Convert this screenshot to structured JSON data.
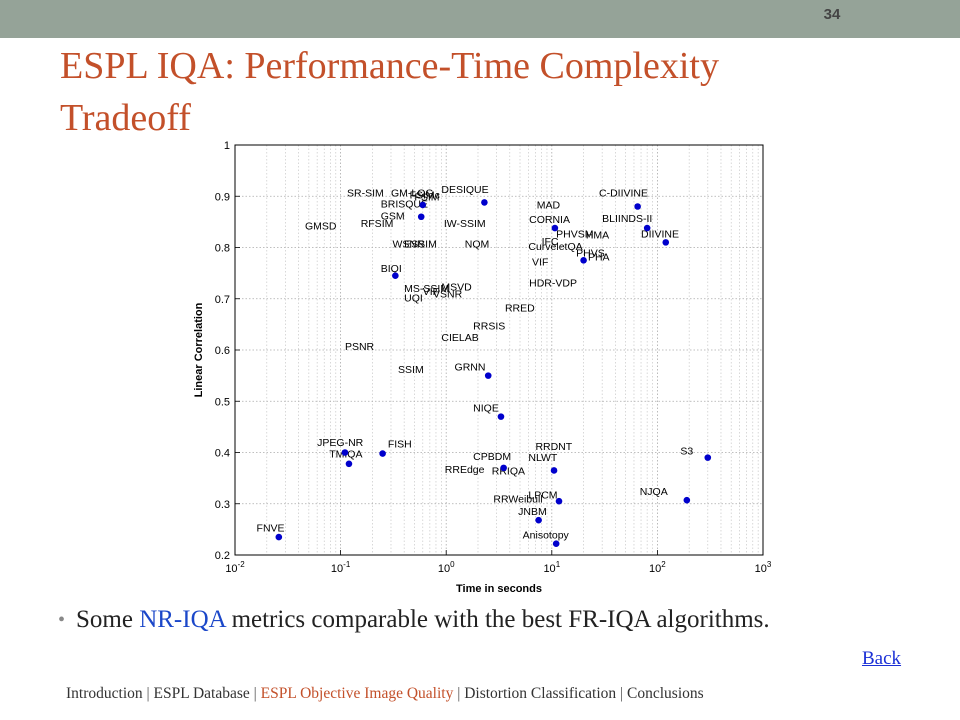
{
  "slide_number": "34",
  "title": "ESPL IQA: Performance-Time Complexity Tradeoff",
  "bullet": {
    "prefix": "Some ",
    "highlight": "NR-IQA",
    "suffix": " metrics comparable with the best FR-IQA algorithms."
  },
  "back_link": "Back",
  "footer": {
    "items": [
      "Introduction",
      "ESPL Database",
      "ESPL Objective Image Quality",
      "Distortion Classification",
      "Conclusions"
    ],
    "separator": "|",
    "current_index": 2
  },
  "colors": {
    "title": "#c3502a",
    "highlight": "#1b47c9",
    "point": "#0000cc",
    "topbar": "#95a398"
  },
  "chart_data": {
    "type": "scatter",
    "title": "",
    "xlabel": "Time in seconds",
    "ylabel": "Linear Correlation",
    "x_scale": "log",
    "xlim": [
      0.01,
      1000
    ],
    "ylim": [
      0.2,
      1
    ],
    "x_ticks": [
      {
        "value": 0.01,
        "base": "10",
        "exp": "-2"
      },
      {
        "value": 0.1,
        "base": "10",
        "exp": "-1"
      },
      {
        "value": 1,
        "base": "10",
        "exp": "0"
      },
      {
        "value": 10,
        "base": "10",
        "exp": "1"
      },
      {
        "value": 100,
        "base": "10",
        "exp": "2"
      },
      {
        "value": 1000,
        "base": "10",
        "exp": "3"
      }
    ],
    "y_ticks": [
      "0.2",
      "0.3",
      "0.4",
      "0.5",
      "0.6",
      "0.7",
      "0.8",
      "0.9",
      "1"
    ],
    "grid": true,
    "points": [
      {
        "x": 0.026,
        "y": 0.235
      },
      {
        "x": 0.11,
        "y": 0.4
      },
      {
        "x": 0.12,
        "y": 0.378
      },
      {
        "x": 0.25,
        "y": 0.398
      },
      {
        "x": 0.33,
        "y": 0.745
      },
      {
        "x": 0.58,
        "y": 0.86
      },
      {
        "x": 0.6,
        "y": 0.883
      },
      {
        "x": 2.3,
        "y": 0.888
      },
      {
        "x": 2.5,
        "y": 0.55
      },
      {
        "x": 3.3,
        "y": 0.47
      },
      {
        "x": 3.5,
        "y": 0.37
      },
      {
        "x": 7.5,
        "y": 0.268
      },
      {
        "x": 10.5,
        "y": 0.365
      },
      {
        "x": 10.7,
        "y": 0.838
      },
      {
        "x": 11,
        "y": 0.222
      },
      {
        "x": 11.7,
        "y": 0.305
      },
      {
        "x": 20,
        "y": 0.775
      },
      {
        "x": 65,
        "y": 0.88
      },
      {
        "x": 80,
        "y": 0.838
      },
      {
        "x": 120,
        "y": 0.81
      },
      {
        "x": 190,
        "y": 0.307
      },
      {
        "x": 300,
        "y": 0.39
      }
    ],
    "labels": [
      {
        "text": "SR-SIM",
        "x": 0.115,
        "y": 0.9
      },
      {
        "text": "GM-LOG",
        "x": 0.3,
        "y": 0.9
      },
      {
        "text": "FSIMc",
        "x": 0.45,
        "y": 0.896
      },
      {
        "text": "FSIM",
        "x": 0.5,
        "y": 0.892
      },
      {
        "text": "DESIQUE",
        "x": 0.9,
        "y": 0.906
      },
      {
        "text": "BRISQUE",
        "x": 0.24,
        "y": 0.878
      },
      {
        "text": "GSM",
        "x": 0.24,
        "y": 0.855
      },
      {
        "text": "RFSIM",
        "x": 0.155,
        "y": 0.84
      },
      {
        "text": "IW-SSIM",
        "x": 0.95,
        "y": 0.84
      },
      {
        "text": "GMSD",
        "x": 0.046,
        "y": 0.835
      },
      {
        "text": "WSNR",
        "x": 0.31,
        "y": 0.8
      },
      {
        "text": "ESSIM",
        "x": 0.4,
        "y": 0.8
      },
      {
        "text": "NQM",
        "x": 1.5,
        "y": 0.8
      },
      {
        "text": "BIQI",
        "x": 0.24,
        "y": 0.752
      },
      {
        "text": "MS-SSIM",
        "x": 0.4,
        "y": 0.713
      },
      {
        "text": "MSVD",
        "x": 0.9,
        "y": 0.716
      },
      {
        "text": "VSNR",
        "x": 0.75,
        "y": 0.702
      },
      {
        "text": "VIF",
        "x": 0.6,
        "y": 0.707
      },
      {
        "text": "UQI",
        "x": 0.4,
        "y": 0.695
      },
      {
        "text": "MAD",
        "x": 7.2,
        "y": 0.876
      },
      {
        "text": "CORNIA",
        "x": 6.1,
        "y": 0.848
      },
      {
        "text": "C-DIIVINE",
        "x": 28,
        "y": 0.9
      },
      {
        "text": "BLIINDS-II",
        "x": 30,
        "y": 0.85
      },
      {
        "text": "PHVSM",
        "x": 11,
        "y": 0.82
      },
      {
        "text": "HMA",
        "x": 21,
        "y": 0.818
      },
      {
        "text": "IFC",
        "x": 8,
        "y": 0.805
      },
      {
        "text": "CurveletQA",
        "x": 6,
        "y": 0.795
      },
      {
        "text": "DIIVINE",
        "x": 70,
        "y": 0.82
      },
      {
        "text": "PHVS",
        "x": 17,
        "y": 0.782
      },
      {
        "text": "PHA",
        "x": 22,
        "y": 0.775
      },
      {
        "text": "VIF",
        "x": 6.5,
        "y": 0.765
      },
      {
        "text": "HDR-VDP",
        "x": 6.1,
        "y": 0.724
      },
      {
        "text": "RRED",
        "x": 3.6,
        "y": 0.675
      },
      {
        "text": "RRSIS",
        "x": 1.8,
        "y": 0.64
      },
      {
        "text": "CIELAB",
        "x": 0.9,
        "y": 0.618
      },
      {
        "text": "PSNR",
        "x": 0.11,
        "y": 0.6
      },
      {
        "text": "GRNN",
        "x": 1.2,
        "y": 0.56
      },
      {
        "text": "SSIM",
        "x": 0.35,
        "y": 0.555
      },
      {
        "text": "NIQE",
        "x": 1.8,
        "y": 0.48
      },
      {
        "text": "JPEG-NR",
        "x": 0.06,
        "y": 0.413
      },
      {
        "text": "FISH",
        "x": 0.28,
        "y": 0.41
      },
      {
        "text": "TMIQA",
        "x": 0.078,
        "y": 0.39
      },
      {
        "text": "RRDNT",
        "x": 7,
        "y": 0.405
      },
      {
        "text": "CPBDM",
        "x": 1.8,
        "y": 0.385
      },
      {
        "text": "NLWT",
        "x": 6,
        "y": 0.383
      },
      {
        "text": "RREdge",
        "x": 0.97,
        "y": 0.36
      },
      {
        "text": "RRIQA",
        "x": 2.7,
        "y": 0.357
      },
      {
        "text": "S3",
        "x": 165,
        "y": 0.396
      },
      {
        "text": "NJQA",
        "x": 68,
        "y": 0.317
      },
      {
        "text": "RRWeibull",
        "x": 2.8,
        "y": 0.302
      },
      {
        "text": "LPCM",
        "x": 6,
        "y": 0.31
      },
      {
        "text": "JNBM",
        "x": 4.8,
        "y": 0.278
      },
      {
        "text": "Anisotopy",
        "x": 5.3,
        "y": 0.232
      },
      {
        "text": "FNVE",
        "x": 0.016,
        "y": 0.246
      }
    ]
  }
}
